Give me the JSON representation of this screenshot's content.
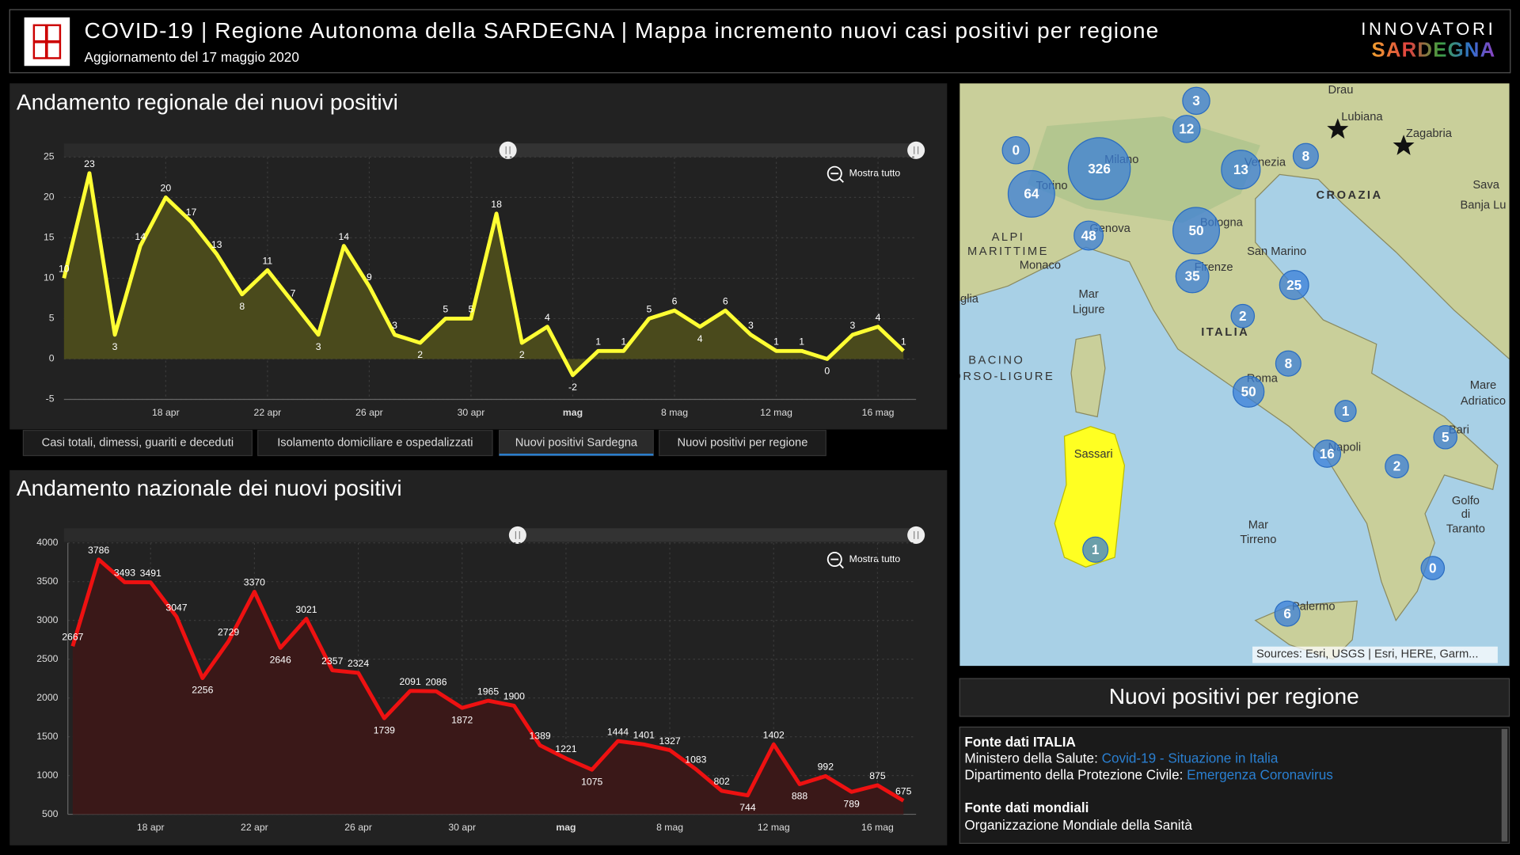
{
  "header": {
    "title": "COVID-19 | Regione Autonoma della SARDEGNA | Mappa incremento nuovi casi positivi per regione",
    "subtitle": "Aggiornamento del 17 maggio 2020",
    "logo_top": "INNOVATORI",
    "logo_bottom": "SARDEGNA"
  },
  "chart_data": [
    {
      "type": "area",
      "title": "Andamento regionale dei nuovi positivi",
      "zoom_label": "Mostra tutto",
      "color": "#ffff33",
      "fill": "#4a4a1c",
      "categories": [
        null,
        null,
        null,
        null,
        "18 apr",
        null,
        null,
        null,
        "22 apr",
        null,
        null,
        null,
        "26 apr",
        null,
        null,
        null,
        "30 apr",
        null,
        null,
        null,
        "mag",
        null,
        null,
        null,
        "8 mag",
        null,
        null,
        null,
        "12 mag",
        null,
        null,
        null,
        "16 mag",
        null
      ],
      "values": [
        10,
        23,
        3,
        14,
        20,
        17,
        13,
        8,
        11,
        7,
        3,
        14,
        9,
        3,
        2,
        5,
        5,
        18,
        2,
        4,
        -2,
        1,
        1,
        5,
        6,
        4,
        6,
        3,
        1,
        1,
        0,
        3,
        4,
        1
      ],
      "ylim": [
        -5,
        25
      ],
      "yticks": [
        -5,
        0,
        5,
        10,
        15,
        20,
        25
      ],
      "grid": true
    },
    {
      "type": "area",
      "title": "Andamento nazionale dei nuovi positivi",
      "zoom_label": "Mostra tutto",
      "color": "#ee1111",
      "fill": "#3a1818",
      "categories": [
        null,
        null,
        null,
        "18 apr",
        null,
        null,
        null,
        "22 apr",
        null,
        null,
        null,
        "26 apr",
        null,
        null,
        null,
        "30 apr",
        null,
        null,
        null,
        "mag",
        null,
        null,
        null,
        "8 mag",
        null,
        null,
        null,
        "12 mag",
        null,
        null,
        null,
        "16 mag",
        null
      ],
      "values": [
        2667,
        3786,
        3493,
        3491,
        3047,
        2256,
        2729,
        3370,
        2646,
        3021,
        2357,
        2324,
        1739,
        2091,
        2086,
        1872,
        1965,
        1900,
        1389,
        1221,
        1075,
        1444,
        1401,
        1327,
        1083,
        802,
        744,
        1402,
        888,
        992,
        789,
        875,
        675
      ],
      "ylim": [
        500,
        4000
      ],
      "yticks": [
        500,
        1000,
        1500,
        2000,
        2500,
        3000,
        3500,
        4000
      ],
      "grid": true
    }
  ],
  "tabs": [
    "Casi totali, dimessi, guariti e deceduti",
    "Isolamento domiciliare e ospedalizzati",
    "Nuovi positivi Sardegna",
    "Nuovi positivi per regione"
  ],
  "map": {
    "markers": [
      0,
      3,
      12,
      326,
      13,
      8,
      64,
      48,
      50,
      35,
      25,
      2,
      8,
      50,
      1,
      5,
      16,
      2,
      1,
      0,
      6
    ],
    "labels": [
      "Lubiana",
      "Zagabria",
      "CROAZIA",
      "Milano",
      "Torino",
      "Venezia",
      "Genova",
      "Bologna",
      "Firenze",
      "San Marino",
      "Monaco",
      "Mar",
      "Ligure",
      "BACINO",
      "ORSO-LIGURE",
      "ITALIA",
      "Roma",
      "Napoli",
      "Bari",
      "Mare",
      "Adriatico",
      "Golfo",
      "di",
      "Taranto",
      "Mar",
      "Tirreno",
      "Sassari",
      "Palermo",
      "Drau",
      "Sava",
      "Banja Lu",
      "glia",
      "ALPI",
      "MARITTIME"
    ],
    "attribution": "Sources: Esri, USGS | Esri, HERE, Garm..."
  },
  "panel_title": "Nuovi positivi per regione",
  "info": {
    "italy_heading": "Fonte dati ITALIA",
    "ministry": "Ministero della Salute:",
    "ministry_link": "Covid-19 - Situazione in Italia",
    "civil": "Dipartimento della Protezione Civile:",
    "civil_link": "Emergenza Coronavirus",
    "world_heading": "Fonte dati mondiali",
    "world": "Organizzazione Mondiale della Sanità"
  }
}
